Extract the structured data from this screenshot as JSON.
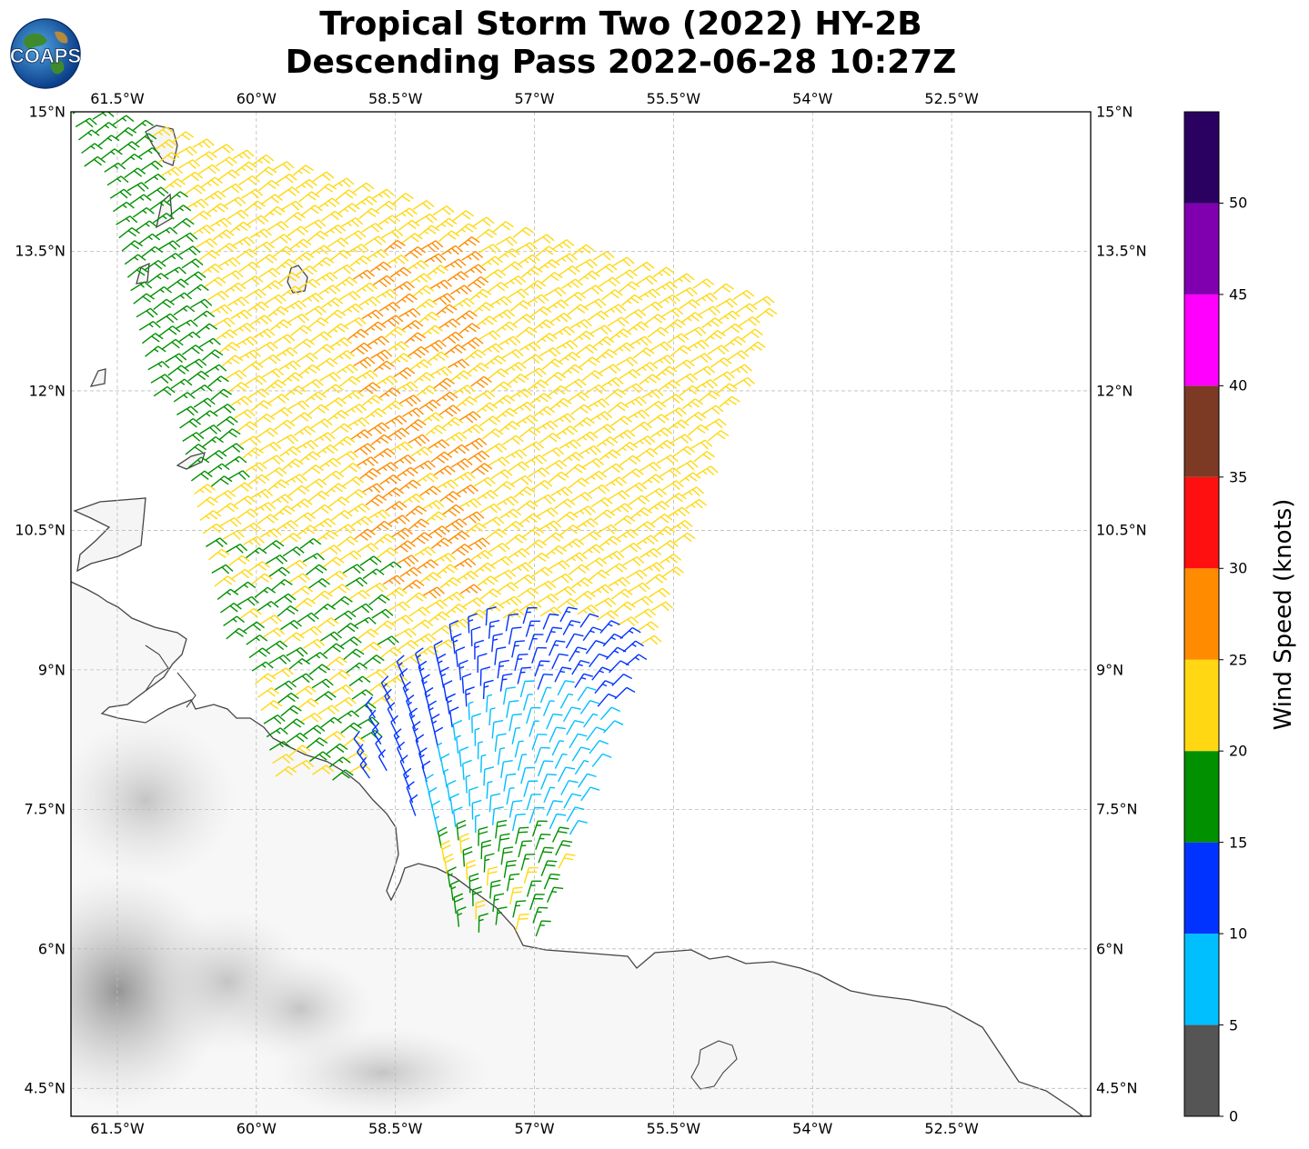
{
  "title": {
    "line1": "Tropical Storm Two (2022) HY-2B",
    "line2": "Descending Pass 2022-06-28 10:27Z"
  },
  "logo": {
    "text": "COAPS",
    "icon": "globe-logo-icon"
  },
  "map": {
    "lon_range": [
      -62.0,
      -51.0
    ],
    "lat_range": [
      4.2,
      15.0
    ],
    "grid": true,
    "lon_ticks": [
      {
        "value": -61.5,
        "label": "61.5°W"
      },
      {
        "value": -60.0,
        "label": "60°W"
      },
      {
        "value": -58.5,
        "label": "58.5°W"
      },
      {
        "value": -57.0,
        "label": "57°W"
      },
      {
        "value": -55.5,
        "label": "55.5°W"
      },
      {
        "value": -54.0,
        "label": "54°W"
      },
      {
        "value": -52.5,
        "label": "52.5°W"
      }
    ],
    "lat_ticks": [
      {
        "value": 15.0,
        "label": "15°N"
      },
      {
        "value": 13.5,
        "label": "13.5°N"
      },
      {
        "value": 12.0,
        "label": "12°N"
      },
      {
        "value": 10.5,
        "label": "10.5°N"
      },
      {
        "value": 9.0,
        "label": "9°N"
      },
      {
        "value": 7.5,
        "label": "7.5°N"
      },
      {
        "value": 6.0,
        "label": "6°N"
      },
      {
        "value": 4.5,
        "label": "4.5°N"
      }
    ],
    "land_color": "#ffffff",
    "coast_color": "#444444",
    "swath": {
      "description_units": "knots",
      "barb_style": "wind barbs"
    }
  },
  "colorbar": {
    "label": "Wind Speed (knots)",
    "range": [
      0,
      55
    ],
    "bins": [
      {
        "from": 0,
        "to": 5,
        "color": "#555555"
      },
      {
        "from": 5,
        "to": 10,
        "color": "#00bfff"
      },
      {
        "from": 10,
        "to": 15,
        "color": "#0033ff"
      },
      {
        "from": 15,
        "to": 20,
        "color": "#009000"
      },
      {
        "from": 20,
        "to": 25,
        "color": "#ffd813"
      },
      {
        "from": 25,
        "to": 30,
        "color": "#ff8c00"
      },
      {
        "from": 30,
        "to": 35,
        "color": "#ff1010"
      },
      {
        "from": 35,
        "to": 40,
        "color": "#7c3a25"
      },
      {
        "from": 40,
        "to": 45,
        "color": "#ff00ff"
      },
      {
        "from": 45,
        "to": 50,
        "color": "#8000b0"
      },
      {
        "from": 50,
        "to": 55,
        "color": "#2a0060"
      }
    ],
    "ticks": [
      "0",
      "5",
      "10",
      "15",
      "20",
      "25",
      "30",
      "35",
      "40",
      "45",
      "50"
    ]
  }
}
